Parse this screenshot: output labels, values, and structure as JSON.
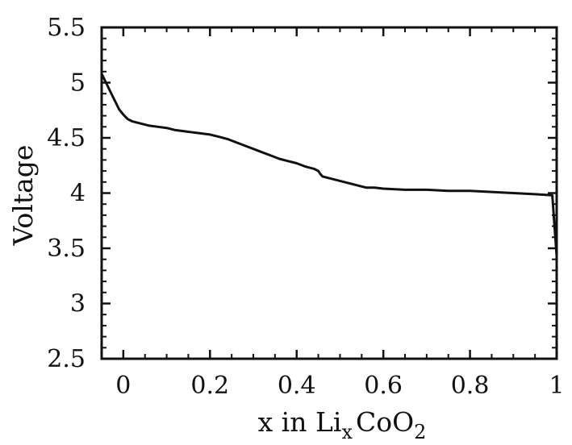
{
  "chart_data": {
    "type": "line",
    "title": "",
    "xlabel": {
      "prefix": "x in Li",
      "sub1": "x",
      "mid": "CoO",
      "sub2": "2"
    },
    "ylabel": "Voltage",
    "xlim": [
      -0.05,
      1.0
    ],
    "ylim": [
      2.5,
      5.5
    ],
    "xticks": [
      0,
      0.2,
      0.4,
      0.6,
      0.8,
      1
    ],
    "xtick_labels": [
      "0",
      "0.2",
      "0.4",
      "0.6",
      "0.8",
      "1"
    ],
    "yticks": [
      2.5,
      3,
      3.5,
      4,
      4.5,
      5,
      5.5
    ],
    "ytick_labels": [
      "2.5",
      "3",
      "3.5",
      "4",
      "4.5",
      "5",
      "5.5"
    ],
    "grid": false,
    "series": [
      {
        "x": [
          -0.05,
          -0.04,
          -0.03,
          -0.02,
          -0.01,
          0.0,
          0.01,
          0.02,
          0.04,
          0.06,
          0.08,
          0.1,
          0.12,
          0.14,
          0.16,
          0.18,
          0.2,
          0.22,
          0.24,
          0.26,
          0.28,
          0.3,
          0.32,
          0.34,
          0.36,
          0.38,
          0.4,
          0.42,
          0.44,
          0.45,
          0.455,
          0.46,
          0.48,
          0.5,
          0.52,
          0.54,
          0.56,
          0.58,
          0.6,
          0.65,
          0.7,
          0.75,
          0.8,
          0.85,
          0.9,
          0.95,
          0.99,
          0.995,
          1.0
        ],
        "y": [
          5.08,
          5.0,
          4.92,
          4.84,
          4.76,
          4.71,
          4.67,
          4.65,
          4.63,
          4.61,
          4.6,
          4.59,
          4.57,
          4.56,
          4.55,
          4.54,
          4.53,
          4.51,
          4.49,
          4.46,
          4.43,
          4.4,
          4.37,
          4.34,
          4.31,
          4.29,
          4.27,
          4.24,
          4.22,
          4.2,
          4.17,
          4.15,
          4.13,
          4.11,
          4.09,
          4.07,
          4.05,
          4.05,
          4.04,
          4.03,
          4.03,
          4.02,
          4.02,
          4.01,
          4.0,
          3.99,
          3.98,
          3.7,
          3.43
        ]
      }
    ]
  }
}
